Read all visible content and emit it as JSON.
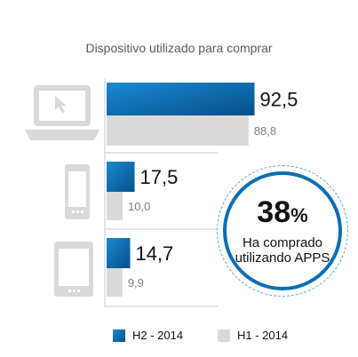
{
  "chart_data": {
    "type": "bar",
    "title": "Dispositivo utilizado para comprar",
    "categories": [
      "laptop-icon",
      "smartphone-icon",
      "tablet-icon"
    ],
    "series": [
      {
        "name": "H2 - 2014",
        "values": [
          92.5,
          17.5,
          14.7
        ],
        "labels": [
          "92,5",
          "17,5",
          "14,7"
        ],
        "color": "#0a6fb4"
      },
      {
        "name": "H1 - 2014",
        "values": [
          88.8,
          10.0,
          9.9
        ],
        "labels": [
          "88,8",
          "10,0",
          "9,9"
        ],
        "color": "#d9d9d9"
      }
    ],
    "xlim": [
      0,
      100
    ],
    "grid": false,
    "legend": "bottom"
  },
  "callout": {
    "value": "38",
    "unit": "%",
    "text": "Ha comprado utilizando APPS"
  },
  "colors": {
    "device_icon": "#d9d9d9",
    "axis": "#c8c8c8"
  }
}
